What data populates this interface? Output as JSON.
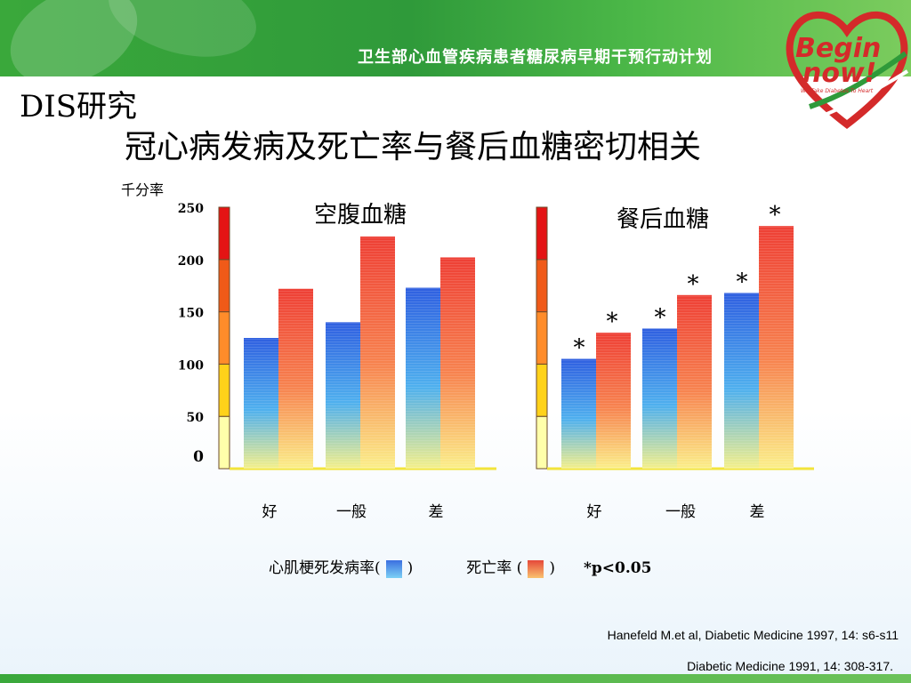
{
  "header": {
    "title": "卫生部心血管疾病患者糖尿病早期干预行动计划",
    "logo_line1": "Begin",
    "logo_line2": "now!",
    "logo_tagline": "We Take Diabetes To Heart"
  },
  "slide": {
    "dis_title": "DIS研究",
    "main_title": "冠心病发病及死亡率与餐后血糖密切相关",
    "unit_label": "千分率",
    "legend": {
      "mi_label": "心肌梗死发病率(",
      "mi_close": ")",
      "death_label": "死亡率 (",
      "death_close": ")",
      "p_note": "*p<0.05"
    },
    "references": [
      "Hanefeld M.et al, Diabetic Medicine 1997, 14: s6-s11",
      "Diabetic Medicine 1991, 14: 308-317."
    ]
  },
  "chart_data": [
    {
      "type": "bar",
      "title": "空腹血糖",
      "categories": [
        "好",
        "一般",
        "差"
      ],
      "yticks": [
        "250",
        "200",
        "150",
        "100",
        "50",
        "0"
      ],
      "ylim": [
        0,
        250
      ],
      "series": [
        {
          "name": "心肌梗死发病率",
          "values": [
            125,
            140,
            173
          ],
          "color": "#3b6fe0"
        },
        {
          "name": "死亡率",
          "values": [
            172,
            222,
            202
          ],
          "color": "#e5483a"
        }
      ],
      "significance": []
    },
    {
      "type": "bar",
      "title": "餐后血糖",
      "categories": [
        "好",
        "一般",
        "差"
      ],
      "yticks": [
        "250",
        "200",
        "150",
        "100",
        "50",
        "0"
      ],
      "ylim": [
        0,
        250
      ],
      "series": [
        {
          "name": "心肌梗死发病率",
          "values": [
            105,
            134,
            168
          ],
          "color": "#3b6fe0"
        },
        {
          "name": "死亡率",
          "values": [
            130,
            166,
            232
          ],
          "color": "#e5483a"
        }
      ],
      "significance": [
        {
          "series": 0,
          "category": 0,
          "mark": "*"
        },
        {
          "series": 1,
          "category": 0,
          "mark": "*"
        },
        {
          "series": 0,
          "category": 1,
          "mark": "*"
        },
        {
          "series": 1,
          "category": 1,
          "mark": "*"
        },
        {
          "series": 0,
          "category": 2,
          "mark": "*"
        },
        {
          "series": 1,
          "category": 2,
          "mark": "*"
        }
      ]
    }
  ]
}
